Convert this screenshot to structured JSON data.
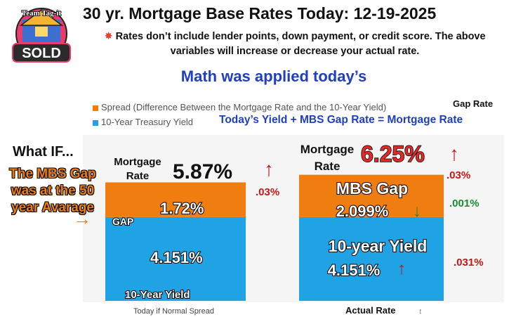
{
  "logo": {
    "top_text": "Team Tag-it",
    "bottom_text": "SOLD"
  },
  "title": "30 yr. Mortgage Base Rates Today: 12-19-2025",
  "notice": "Rates don’t include lender points, down payment, or credit score. The above variables will increase or decrease your actual rate.",
  "math_note": "Math was applied today’s",
  "formula": "Today’s  Yield +  MBS Gap Rate = Mortgage Rate",
  "gap_rate_header": "Gap Rate",
  "what_if": "What IF...",
  "mbs_average_note": "The MBS Gap was at the 50 year Avarage",
  "colors": {
    "spread": "#f07d10",
    "yield": "#1fa3e5",
    "red": "#c41616",
    "green": "#1a8a33",
    "blue_text": "#1f3fc0"
  },
  "chart_data": {
    "type": "bar",
    "stacked": true,
    "categories": [
      "Today if Normal Spread",
      "Actual Rate"
    ],
    "legend": [
      "Spread (Difference Between the Mortgage Rate and the 10-Year Yield)",
      "10-Year Treasury Yield"
    ],
    "series": [
      {
        "name": "10-Year Treasury Yield",
        "values": [
          4.151,
          4.151
        ]
      },
      {
        "name": "Spread (Difference Between the Mortgage Rate and the 10-Year Yield)",
        "values": [
          1.72,
          2.099
        ]
      }
    ],
    "totals": [
      5.87,
      6.25
    ],
    "labels": {
      "left": {
        "mortgage_rate_label": "Mortgage Rate",
        "total": "5.87%",
        "total_change": ".03%",
        "gap_tag": "GAP",
        "gap_value": "1.72%",
        "yield_value": "4.151%",
        "yield_tag": "10-Year Yield"
      },
      "right": {
        "mortgage_rate_label": "Mortgage Rate",
        "total": "6.25%",
        "total_change": ".03%",
        "gap_title": "MBS Gap",
        "gap_value": "2.099%",
        "gap_change": ".001%",
        "yield_title": "10-year Yield",
        "yield_value": "4.151%",
        "yield_change": ".031%"
      }
    },
    "grid": false
  }
}
